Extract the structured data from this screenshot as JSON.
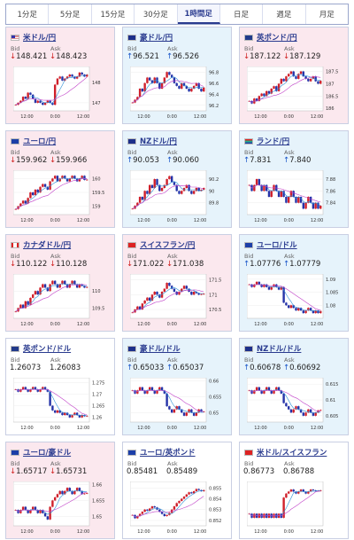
{
  "tabs": [
    "1分足",
    "5分足",
    "15分足",
    "30分足",
    "1時間足",
    "日足",
    "週足",
    "月足"
  ],
  "active_tab": 4,
  "labels": {
    "bid": "Bid",
    "ask": "Ask"
  },
  "colors": {
    "down_bg": "#fbe8ee",
    "up_bg": "#e6f3fb",
    "candle_up": "#d0202b",
    "candle_down": "#2533a8",
    "ma_short": "#2b8fd6",
    "ma_long": "#c040c8"
  },
  "cards": [
    {
      "pair": "米ドル/円",
      "flag": "us-flag-icon",
      "trend": "down",
      "bid": "148.421",
      "ask": "148.423",
      "x_ticks": [
        "12:00",
        "0:00",
        "12:00"
      ],
      "y_ticks": [
        "148",
        "147"
      ],
      "candles": [
        146.9,
        147.0,
        147.1,
        147.3,
        147.2,
        147.5,
        147.4,
        147.2,
        147.0,
        147.1,
        147.0,
        146.9,
        147.0,
        147.1,
        147.0,
        146.9,
        147.9,
        148.2,
        148.3,
        148.1,
        148.2,
        148.3,
        148.4,
        148.3,
        148.2,
        148.3,
        148.5,
        148.4,
        148.3,
        148.4
      ],
      "ylim": [
        146.6,
        148.8
      ]
    },
    {
      "pair": "豪ドル/円",
      "flag": "au-flag-icon",
      "trend": "up",
      "bid": "96.521",
      "ask": "96.526",
      "x_ticks": [
        "12:00",
        "0:00",
        "12:00"
      ],
      "y_ticks": [
        "96.8",
        "96.6",
        "96.4",
        "96.2"
      ],
      "candles": [
        96.25,
        96.3,
        96.35,
        96.5,
        96.45,
        96.6,
        96.7,
        96.65,
        96.6,
        96.7,
        96.6,
        96.5,
        96.6,
        96.7,
        96.8,
        96.75,
        96.7,
        96.6,
        96.55,
        96.5,
        96.6,
        96.55,
        96.5,
        96.45,
        96.5,
        96.55,
        96.6,
        96.5,
        96.45,
        96.52
      ],
      "ylim": [
        96.1,
        96.9
      ]
    },
    {
      "pair": "英ポンド/円",
      "flag": "gb-flag-icon",
      "trend": "down",
      "bid": "187.122",
      "ask": "187.129",
      "x_ticks": [
        "12:00",
        "0:00",
        "12:00"
      ],
      "y_ticks": [
        "187.5",
        "187",
        "186.5",
        "186"
      ],
      "candles": [
        186.3,
        186.2,
        186.4,
        186.3,
        186.5,
        186.6,
        186.5,
        186.7,
        186.6,
        186.8,
        186.9,
        186.7,
        187.0,
        187.2,
        187.1,
        187.3,
        187.4,
        187.5,
        187.3,
        187.2,
        187.4,
        187.5,
        187.3,
        187.2,
        187.1,
        187.2,
        187.3,
        187.1,
        187.0,
        187.12
      ],
      "ylim": [
        185.9,
        187.7
      ]
    },
    {
      "pair": "ユーロ/円",
      "flag": "eu-flag-icon",
      "trend": "down",
      "bid": "159.962",
      "ask": "159.966",
      "x_ticks": [
        "12:00",
        "0:00",
        "12:00"
      ],
      "y_ticks": [
        "160",
        "159.5",
        "159"
      ],
      "candles": [
        158.9,
        159.0,
        159.1,
        159.2,
        159.1,
        159.3,
        159.5,
        159.4,
        159.6,
        159.5,
        159.7,
        159.8,
        159.7,
        159.6,
        159.9,
        160.0,
        160.1,
        159.9,
        160.0,
        160.1,
        160.0,
        159.9,
        160.0,
        160.1,
        160.0,
        159.9,
        160.0,
        160.1,
        159.95,
        159.96
      ],
      "ylim": [
        158.7,
        160.3
      ]
    },
    {
      "pair": "NZドル/円",
      "flag": "nz-flag-icon",
      "trend": "up",
      "bid": "90.053",
      "ask": "90.060",
      "x_ticks": [
        "12:00",
        "0:00",
        "12:00"
      ],
      "y_ticks": [
        "90.2",
        "90",
        "89.8"
      ],
      "candles": [
        89.7,
        89.75,
        89.8,
        89.9,
        89.85,
        90.0,
        89.95,
        90.1,
        90.05,
        90.2,
        90.1,
        90.0,
        90.05,
        90.1,
        90.2,
        90.25,
        90.15,
        90.1,
        90.0,
        89.95,
        90.0,
        90.05,
        90.1,
        90.0,
        89.95,
        90.0,
        90.05,
        90.0,
        90.02,
        90.05
      ],
      "ylim": [
        89.6,
        90.35
      ]
    },
    {
      "pair": "ランド/円",
      "flag": "za-flag-icon",
      "trend": "up",
      "bid": "7.831",
      "ask": "7.840",
      "x_ticks": [
        "12:00",
        "0:00",
        "12:00"
      ],
      "y_ticks": [
        "7.88",
        "7.86",
        "7.84"
      ],
      "candles": [
        7.87,
        7.86,
        7.87,
        7.88,
        7.87,
        7.86,
        7.87,
        7.86,
        7.85,
        7.86,
        7.87,
        7.86,
        7.85,
        7.86,
        7.85,
        7.84,
        7.85,
        7.86,
        7.85,
        7.84,
        7.85,
        7.84,
        7.83,
        7.84,
        7.85,
        7.84,
        7.83,
        7.84,
        7.83,
        7.835
      ],
      "ylim": [
        7.82,
        7.895
      ]
    },
    {
      "pair": "カナダドル/円",
      "flag": "ca-flag-icon",
      "trend": "down",
      "bid": "110.122",
      "ask": "110.128",
      "x_ticks": [
        "12:00",
        "0:00",
        "12:00"
      ],
      "y_ticks": [
        "110",
        "109.5"
      ],
      "candles": [
        109.4,
        109.5,
        109.6,
        109.5,
        109.7,
        109.6,
        109.8,
        109.9,
        110.0,
        109.9,
        110.1,
        110.2,
        110.1,
        110.0,
        110.2,
        110.3,
        110.2,
        110.1,
        110.2,
        110.3,
        110.2,
        110.1,
        110.2,
        110.3,
        110.2,
        110.1,
        110.2,
        110.15,
        110.1,
        110.12
      ],
      "ylim": [
        109.2,
        110.5
      ]
    },
    {
      "pair": "スイスフラン/円",
      "flag": "ch-flag-icon",
      "trend": "down",
      "bid": "171.022",
      "ask": "171.038",
      "x_ticks": [
        "12:00",
        "0:00",
        "12:00"
      ],
      "y_ticks": [
        "171.5",
        "171",
        "170.5"
      ],
      "candles": [
        170.4,
        170.5,
        170.6,
        170.5,
        170.7,
        170.8,
        170.9,
        170.8,
        171.0,
        171.1,
        171.0,
        170.9,
        171.1,
        171.2,
        171.4,
        171.3,
        171.2,
        171.1,
        171.0,
        171.1,
        171.2,
        171.3,
        171.2,
        171.1,
        171.0,
        171.1,
        171.05,
        171.0,
        171.02,
        171.03
      ],
      "ylim": [
        170.2,
        171.7
      ]
    },
    {
      "pair": "ユーロ/ドル",
      "flag": "eu-flag-icon",
      "trend": "up",
      "bid": "1.07776",
      "ask": "1.07779",
      "x_ticks": [
        "12:00",
        "0:00",
        "12:00"
      ],
      "y_ticks": [
        "1.09",
        "1.085",
        "1.08"
      ],
      "candles": [
        1.088,
        1.087,
        1.088,
        1.089,
        1.088,
        1.087,
        1.088,
        1.087,
        1.086,
        1.087,
        1.088,
        1.087,
        1.086,
        1.087,
        1.081,
        1.08,
        1.079,
        1.08,
        1.079,
        1.078,
        1.079,
        1.078,
        1.077,
        1.078,
        1.079,
        1.078,
        1.077,
        1.078,
        1.077,
        1.0778
      ],
      "ylim": [
        1.075,
        1.092
      ]
    },
    {
      "pair": "英ポンド/ドル",
      "flag": "gb-flag-icon",
      "trend": "neutral",
      "bid": "1.26073",
      "ask": "1.26083",
      "x_ticks": [
        "12:00",
        "0:00",
        "12:00"
      ],
      "y_ticks": [
        "1.275",
        "1.27",
        "1.265",
        "1.26"
      ],
      "candles": [
        1.272,
        1.271,
        1.272,
        1.273,
        1.272,
        1.271,
        1.272,
        1.273,
        1.272,
        1.271,
        1.272,
        1.273,
        1.272,
        1.271,
        1.265,
        1.263,
        1.262,
        1.263,
        1.262,
        1.261,
        1.262,
        1.261,
        1.26,
        1.261,
        1.262,
        1.261,
        1.26,
        1.261,
        1.2605,
        1.2607
      ],
      "ylim": [
        1.258,
        1.277
      ]
    },
    {
      "pair": "豪ドル/ドル",
      "flag": "au-flag-icon",
      "trend": "up",
      "bid": "0.65033",
      "ask": "0.65037",
      "x_ticks": [
        "12:00",
        "0:00",
        "12:00"
      ],
      "y_ticks": [
        "0.66",
        "0.655",
        "0.65"
      ],
      "candles": [
        0.657,
        0.656,
        0.657,
        0.658,
        0.657,
        0.656,
        0.657,
        0.658,
        0.657,
        0.656,
        0.657,
        0.658,
        0.657,
        0.656,
        0.652,
        0.651,
        0.65,
        0.651,
        0.652,
        0.651,
        0.65,
        0.649,
        0.65,
        0.651,
        0.65,
        0.649,
        0.65,
        0.651,
        0.6503,
        0.6503
      ],
      "ylim": [
        0.647,
        0.661
      ]
    },
    {
      "pair": "NZドル/ドル",
      "flag": "nz-flag-icon",
      "trend": "up",
      "bid": "0.60678",
      "ask": "0.60692",
      "x_ticks": [
        "12:00",
        "0:00",
        "12:00"
      ],
      "y_ticks": [
        "0.615",
        "0.61",
        "0.605"
      ],
      "candles": [
        0.613,
        0.612,
        0.613,
        0.614,
        0.613,
        0.612,
        0.613,
        0.614,
        0.613,
        0.612,
        0.613,
        0.614,
        0.613,
        0.612,
        0.609,
        0.608,
        0.607,
        0.606,
        0.607,
        0.608,
        0.607,
        0.606,
        0.605,
        0.606,
        0.607,
        0.606,
        0.605,
        0.606,
        0.6067,
        0.6068
      ],
      "ylim": [
        0.603,
        0.617
      ]
    },
    {
      "pair": "ユーロ/豪ドル",
      "flag": "eu-flag-icon",
      "trend": "down",
      "bid": "1.65717",
      "ask": "1.65731",
      "x_ticks": [
        "12:00",
        "0:00",
        "12:00"
      ],
      "y_ticks": [
        "1.66",
        "1.655",
        "1.65"
      ],
      "candles": [
        1.652,
        1.651,
        1.652,
        1.653,
        1.652,
        1.651,
        1.652,
        1.653,
        1.652,
        1.651,
        1.652,
        1.651,
        1.65,
        1.649,
        1.653,
        1.655,
        1.656,
        1.657,
        1.658,
        1.657,
        1.658,
        1.659,
        1.658,
        1.657,
        1.658,
        1.659,
        1.658,
        1.657,
        1.6572,
        1.6573
      ],
      "ylim": [
        1.647,
        1.661
      ]
    },
    {
      "pair": "ユーロ/英ポンド",
      "flag": "eu-flag-icon",
      "trend": "neutral",
      "bid": "0.85481",
      "ask": "0.85489",
      "x_ticks": [
        "12:00",
        "0:00",
        "12:00"
      ],
      "y_ticks": [
        "0.855",
        "0.854",
        "0.853",
        "0.852"
      ],
      "candles": [
        0.8525,
        0.8522,
        0.8524,
        0.8526,
        0.8528,
        0.853,
        0.8529,
        0.8531,
        0.8533,
        0.8532,
        0.853,
        0.8528,
        0.8526,
        0.8524,
        0.8525,
        0.8527,
        0.853,
        0.8533,
        0.8536,
        0.8538,
        0.854,
        0.8542,
        0.8544,
        0.8546,
        0.8545,
        0.8547,
        0.8549,
        0.8548,
        0.8547,
        0.8548
      ],
      "ylim": [
        0.8515,
        0.8556
      ]
    },
    {
      "pair": "米ドル/スイスフラン",
      "flag": "ch-flag-icon",
      "trend": "neutral",
      "bid": "0.86773",
      "ask": "0.86788",
      "x_ticks": [
        "12:00",
        "0:00",
        "12:00"
      ],
      "y_ticks": [],
      "candles": [
        0.862,
        0.861,
        0.862,
        0.861,
        0.862,
        0.861,
        0.862,
        0.861,
        0.862,
        0.861,
        0.862,
        0.861,
        0.862,
        0.861,
        0.866,
        0.867,
        0.8675,
        0.868,
        0.8675,
        0.867,
        0.8675,
        0.868,
        0.8675,
        0.867,
        0.8675,
        0.868,
        0.8678,
        0.8677,
        0.8677,
        0.8678
      ],
      "ylim": [
        0.859,
        0.87
      ]
    }
  ]
}
